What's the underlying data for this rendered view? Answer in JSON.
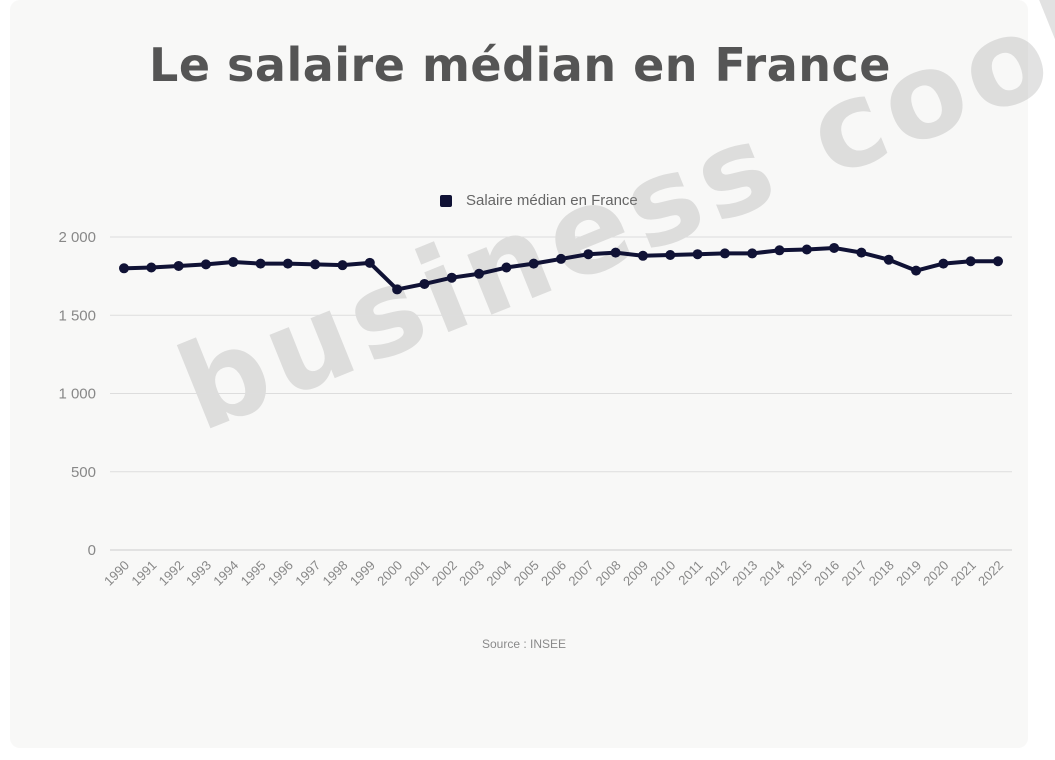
{
  "title": "Le salaire médian en France",
  "source": "Source : INSEE",
  "watermark": "business cool",
  "colors": {
    "line": "#101235",
    "grid": "#dddddd",
    "axis_text": "#888888",
    "title": "#555555"
  },
  "chart_data": {
    "type": "line",
    "title": "Le salaire médian en France",
    "xlabel": "",
    "ylabel": "",
    "ylim": [
      0,
      2000
    ],
    "y_ticks": [
      0,
      500,
      1000,
      1500,
      2000
    ],
    "y_tick_labels": [
      "0",
      "500",
      "1 000",
      "1 500",
      "2 000"
    ],
    "grid": true,
    "legend_position": "top",
    "x": [
      "1990",
      "1991",
      "1992",
      "1993",
      "1994",
      "1995",
      "1996",
      "1997",
      "1998",
      "1999",
      "2000",
      "2001",
      "2002",
      "2003",
      "2004",
      "2005",
      "2006",
      "2007",
      "2008",
      "2009",
      "2010",
      "2011",
      "2012",
      "2013",
      "2014",
      "2015",
      "2016",
      "2017",
      "2018",
      "2019",
      "2020",
      "2021",
      "2022"
    ],
    "series": [
      {
        "name": "Salaire médian en France",
        "values": [
          1800,
          1805,
          1815,
          1825,
          1840,
          1830,
          1830,
          1825,
          1820,
          1835,
          1665,
          1700,
          1740,
          1765,
          1805,
          1830,
          1860,
          1890,
          1900,
          1880,
          1885,
          1890,
          1895,
          1895,
          1915,
          1920,
          1930,
          1900,
          1855,
          1785,
          1830,
          1845,
          1845
        ]
      }
    ]
  }
}
